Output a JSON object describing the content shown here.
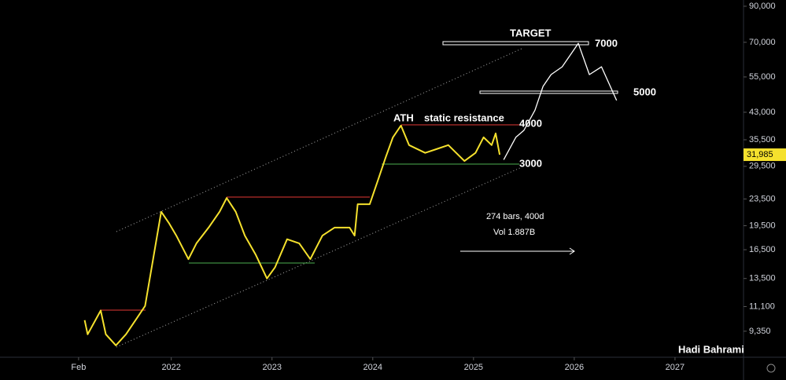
{
  "chart_data": {
    "type": "line",
    "log_scale": true,
    "xlim": [
      2020.3,
      2027.68
    ],
    "ylim": [
      7800,
      94000
    ],
    "xticks": [
      {
        "value": 2021.08,
        "label": "Feb"
      },
      2022,
      2023,
      2024,
      2025,
      2026,
      2027
    ],
    "yticks": [
      {
        "value": 9350,
        "label": "9,350"
      },
      {
        "value": 11100,
        "label": "11,100"
      },
      {
        "value": 13500,
        "label": "13,500"
      },
      {
        "value": 16500,
        "label": "16,500"
      },
      {
        "value": 19500,
        "label": "19,500"
      },
      {
        "value": 23500,
        "label": "23,500"
      },
      {
        "value": 29500,
        "label": "29,500"
      },
      {
        "value": 35500,
        "label": "35,500"
      },
      {
        "value": 43000,
        "label": "43,000"
      },
      {
        "value": 55000,
        "label": "55,000"
      },
      {
        "value": 70000,
        "label": "70,000"
      },
      {
        "value": 90000,
        "label": "90,000"
      }
    ],
    "last_price": {
      "value": 31985,
      "label": "31,985"
    },
    "series": [
      {
        "color": "#f5e12d",
        "x": [
          2021.14,
          2021.17,
          2021.3,
          2021.35,
          2021.45,
          2021.55,
          2021.66,
          2021.74,
          2021.82,
          2021.9,
          2021.98,
          2022.05,
          2022.17,
          2022.25,
          2022.37,
          2022.48,
          2022.55,
          2022.64,
          2022.73,
          2022.84,
          2022.95,
          2023.03,
          2023.15,
          2023.27,
          2023.38,
          2023.5,
          2023.62,
          2023.77,
          2023.82,
          2023.85,
          2023.97,
          2024.05,
          2024.13,
          2024.2,
          2024.28,
          2024.36,
          2024.52,
          2024.63,
          2024.75,
          2024.91,
          2025.02,
          2025.1,
          2025.18,
          2025.22,
          2025.26
        ],
        "values": [
          10100,
          9150,
          10800,
          9150,
          8470,
          9150,
          10250,
          11150,
          15450,
          21500,
          19800,
          18200,
          15450,
          17250,
          19250,
          21500,
          23650,
          21500,
          18200,
          15900,
          13500,
          14600,
          17750,
          17250,
          15450,
          18200,
          19250,
          19250,
          18200,
          22650,
          22650,
          26700,
          31500,
          36100,
          39200,
          34200,
          32400,
          33250,
          34200,
          30600,
          32400,
          36100,
          34200,
          37100,
          31985
        ]
      },
      {
        "color": "#ffffff",
        "x": [
          2025.3,
          2025.42,
          2025.5,
          2025.61,
          2025.69,
          2025.77,
          2025.88,
          2026.04,
          2026.15,
          2026.27,
          2026.42
        ],
        "values": [
          30900,
          36100,
          37900,
          43600,
          51500,
          55900,
          59000,
          69500,
          55900,
          59000,
          46700
        ]
      }
    ],
    "annotations": {
      "target": "TARGET",
      "level_7000": "7000",
      "level_5000": "5000",
      "ath": "ATH",
      "resistance": "static resistance",
      "level_4000": "4000",
      "level_3000": "3000",
      "bars": "274 bars, 400d",
      "volume": "Vol 1.887B",
      "author": "Hadi Bahrami"
    }
  }
}
